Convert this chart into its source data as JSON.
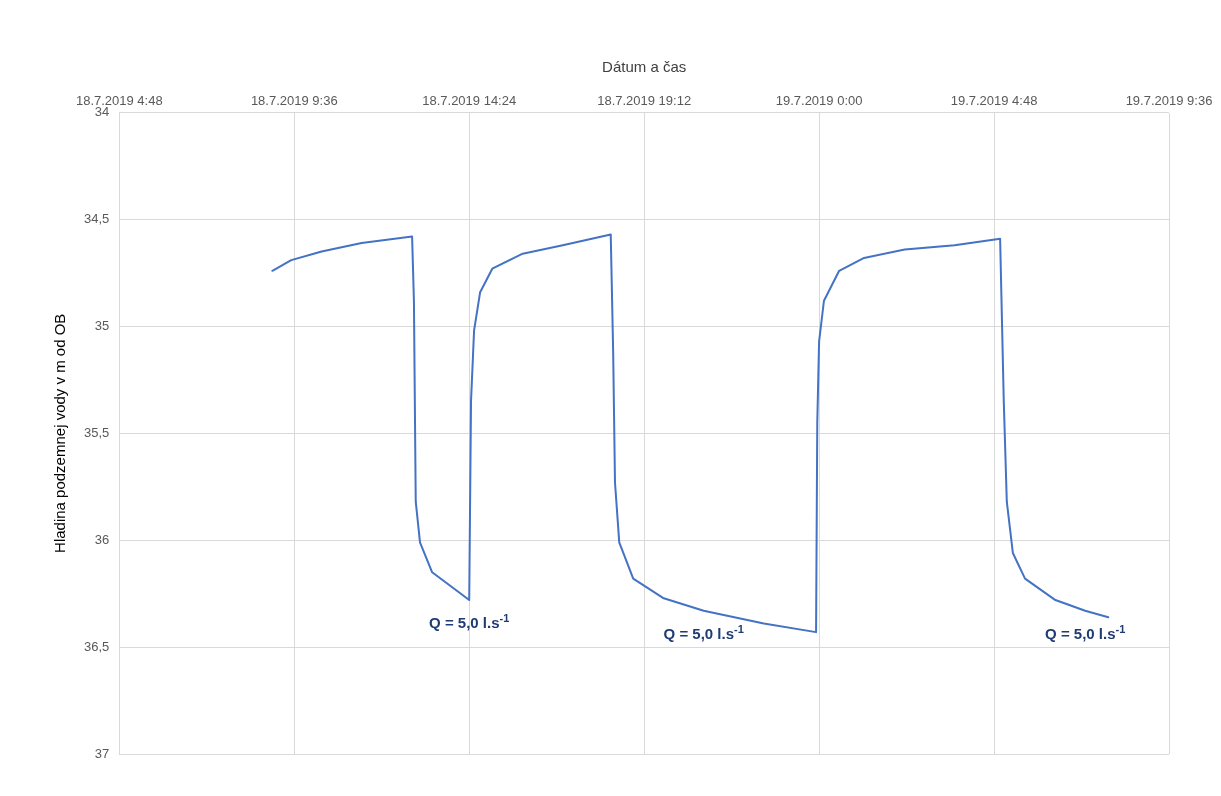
{
  "chart_data": {
    "type": "line",
    "xlabel": "Dátum a čas",
    "ylabel": "Hladina podzemnej vody v m od OB",
    "xlim": [
      "2019-07-18T04:48",
      "2019-07-19T09:36"
    ],
    "xticks": [
      {
        "value": "2019-07-18T04:48",
        "label": "18.7.2019 4:48"
      },
      {
        "value": "2019-07-18T09:36",
        "label": "18.7.2019 9:36"
      },
      {
        "value": "2019-07-18T14:24",
        "label": "18.7.2019 14:24"
      },
      {
        "value": "2019-07-18T19:12",
        "label": "18.7.2019 19:12"
      },
      {
        "value": "2019-07-19T00:00",
        "label": "19.7.2019 0:00"
      },
      {
        "value": "2019-07-19T04:48",
        "label": "19.7.2019 4:48"
      },
      {
        "value": "2019-07-19T09:36",
        "label": "19.7.2019 9:36"
      }
    ],
    "ylim": [
      37,
      34
    ],
    "yticks": [
      34,
      {
        "value": 34.5,
        "label": "34,5"
      },
      35,
      {
        "value": 35.5,
        "label": "35,5"
      },
      36,
      {
        "value": 36.5,
        "label": "36,5"
      },
      37
    ],
    "grid": true,
    "legend": false,
    "marker": "none",
    "line_style": "solid",
    "x": [
      "2019-07-18T09:00",
      "2019-07-18T09:31",
      "2019-07-18T10:21",
      "2019-07-18T11:27",
      "2019-07-18T12:50",
      "2019-07-18T12:53",
      "2019-07-18T12:56",
      "2019-07-18T13:03",
      "2019-07-18T13:23",
      "2019-07-18T13:56",
      "2019-07-18T14:24",
      "2019-07-18T14:27",
      "2019-07-18T14:32",
      "2019-07-18T14:42",
      "2019-07-18T15:02",
      "2019-07-18T15:52",
      "2019-07-18T16:58",
      "2019-07-18T18:17",
      "2019-07-18T18:21",
      "2019-07-18T18:24",
      "2019-07-18T18:31",
      "2019-07-18T18:54",
      "2019-07-18T19:43",
      "2019-07-18T20:50",
      "2019-07-18T22:29",
      "2019-07-18T23:55",
      "2019-07-18T23:57",
      "2019-07-19T00:00",
      "2019-07-19T00:08",
      "2019-07-19T00:33",
      "2019-07-19T01:14",
      "2019-07-19T02:21",
      "2019-07-19T03:43",
      "2019-07-19T04:58",
      "2019-07-19T05:04",
      "2019-07-19T05:09",
      "2019-07-19T05:19",
      "2019-07-19T05:39",
      "2019-07-19T06:29",
      "2019-07-19T07:18",
      "2019-07-19T07:56"
    ],
    "series": [
      {
        "color": "#4472c4",
        "values": [
          34.74,
          34.69,
          34.65,
          34.61,
          34.58,
          34.88,
          35.82,
          36.01,
          36.15,
          36.22,
          36.28,
          35.35,
          35.02,
          34.84,
          34.73,
          34.66,
          34.62,
          34.57,
          35.12,
          35.73,
          36.01,
          36.18,
          36.27,
          36.33,
          36.39,
          36.43,
          35.45,
          35.07,
          34.88,
          34.74,
          34.68,
          34.64,
          34.62,
          34.59,
          35.35,
          35.82,
          36.06,
          36.18,
          36.28,
          36.33,
          36.36
        ]
      }
    ],
    "annotations": [
      {
        "text": "Q = 5,0 l.s$^{-1}$",
        "x": "2019-07-18T14:24",
        "y": 36.28
      },
      {
        "text": "Q = 5,0 l.s$^{-1}$",
        "x": "2019-07-18T20:50",
        "y": 36.33
      },
      {
        "text": "Q = 5,0 l.s$^{-1}$",
        "x": "2019-07-19T07:18",
        "y": 36.33
      }
    ]
  }
}
